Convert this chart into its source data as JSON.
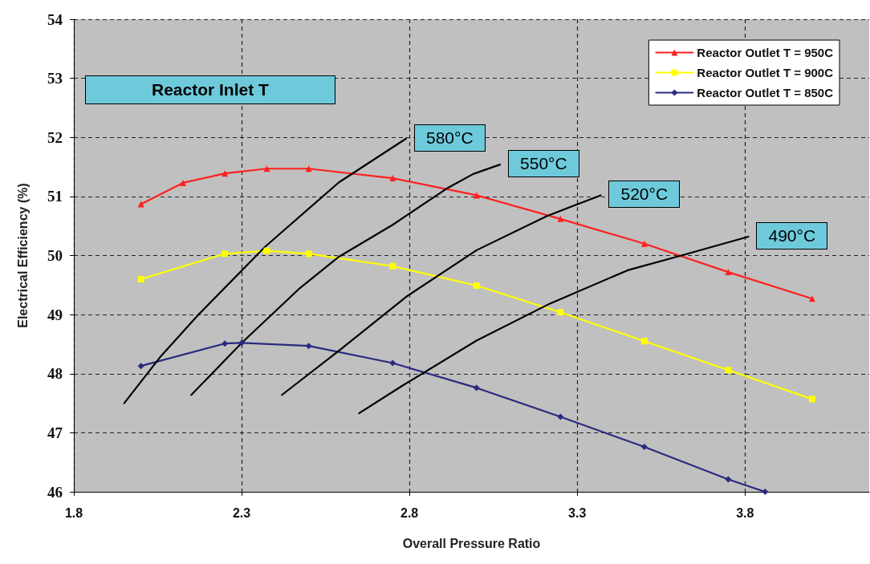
{
  "chart_data": {
    "type": "line",
    "xlabel": "Overall Pressure Ratio",
    "ylabel": "Electrical Efficiency (%)",
    "xlim": [
      1.8,
      4.17
    ],
    "xticks": [
      1.8,
      2.3,
      2.8,
      3.3,
      3.8
    ],
    "ylim": [
      46,
      54
    ],
    "yticks": [
      46,
      47,
      48,
      49,
      50,
      51,
      52,
      53,
      54
    ],
    "grid": true,
    "legend": "top right",
    "line_style": "solid",
    "annotations": [
      "Reactor Inlet T",
      {
        "text": "580°C",
        "x": 2.79,
        "y": 51.98
      },
      {
        "text": "550°C",
        "x": 3.07,
        "y": 51.54
      },
      {
        "text": "520°C",
        "x": 3.37,
        "y": 51.02
      },
      {
        "text": "490°C",
        "x": 3.81,
        "y": 50.32
      }
    ],
    "series": [
      {
        "name": "Reactor Outlet T = 950C",
        "color": "#ff2020",
        "marker": "triangle",
        "x": [
          2.0,
          2.125,
          2.25,
          2.375,
          2.5,
          2.75,
          3.0,
          3.25,
          3.5,
          3.75,
          4.0
        ],
        "values": [
          50.87,
          51.23,
          51.39,
          51.47,
          51.47,
          51.31,
          51.02,
          50.62,
          50.2,
          49.72,
          49.27
        ]
      },
      {
        "name": "Reactor Outlet T = 900C",
        "color": "#ffff00",
        "marker": "square",
        "x": [
          2.0,
          2.25,
          2.375,
          2.5,
          2.75,
          3.0,
          3.25,
          3.5,
          3.75,
          4.0
        ],
        "values": [
          49.6,
          50.03,
          50.08,
          50.03,
          49.82,
          49.49,
          49.04,
          48.55,
          48.06,
          47.57
        ]
      },
      {
        "name": "Reactor Outlet T = 850C",
        "color": "#2a2a80",
        "marker": "diamond",
        "x": [
          2.0,
          2.25,
          2.3,
          2.5,
          2.75,
          3.0,
          3.25,
          3.5,
          3.75,
          3.86
        ],
        "values": [
          48.13,
          48.51,
          48.52,
          48.47,
          48.18,
          47.76,
          47.27,
          46.76,
          46.21,
          46.0
        ]
      },
      {
        "color": "#000000",
        "marker": "none",
        "x": [
          1.95,
          2.06,
          2.17,
          2.37,
          2.59,
          2.79
        ],
        "values": [
          47.5,
          48.3,
          48.99,
          50.15,
          51.24,
          51.98
        ]
      },
      {
        "color": "#000000",
        "marker": "none",
        "x": [
          2.15,
          2.3,
          2.47,
          2.59,
          2.75,
          2.91,
          2.99,
          3.07
        ],
        "values": [
          47.64,
          48.52,
          49.43,
          49.98,
          50.52,
          51.13,
          51.38,
          51.54
        ]
      },
      {
        "color": "#000000",
        "marker": "none",
        "x": [
          2.42,
          2.59,
          2.79,
          3.0,
          3.21,
          3.37
        ],
        "values": [
          47.64,
          48.39,
          49.3,
          50.09,
          50.67,
          51.02
        ]
      },
      {
        "color": "#000000",
        "marker": "none",
        "x": [
          2.65,
          2.78,
          3.0,
          3.22,
          3.45,
          3.61,
          3.81
        ],
        "values": [
          47.33,
          47.8,
          48.56,
          49.19,
          49.75,
          50.0,
          50.32
        ]
      }
    ]
  }
}
